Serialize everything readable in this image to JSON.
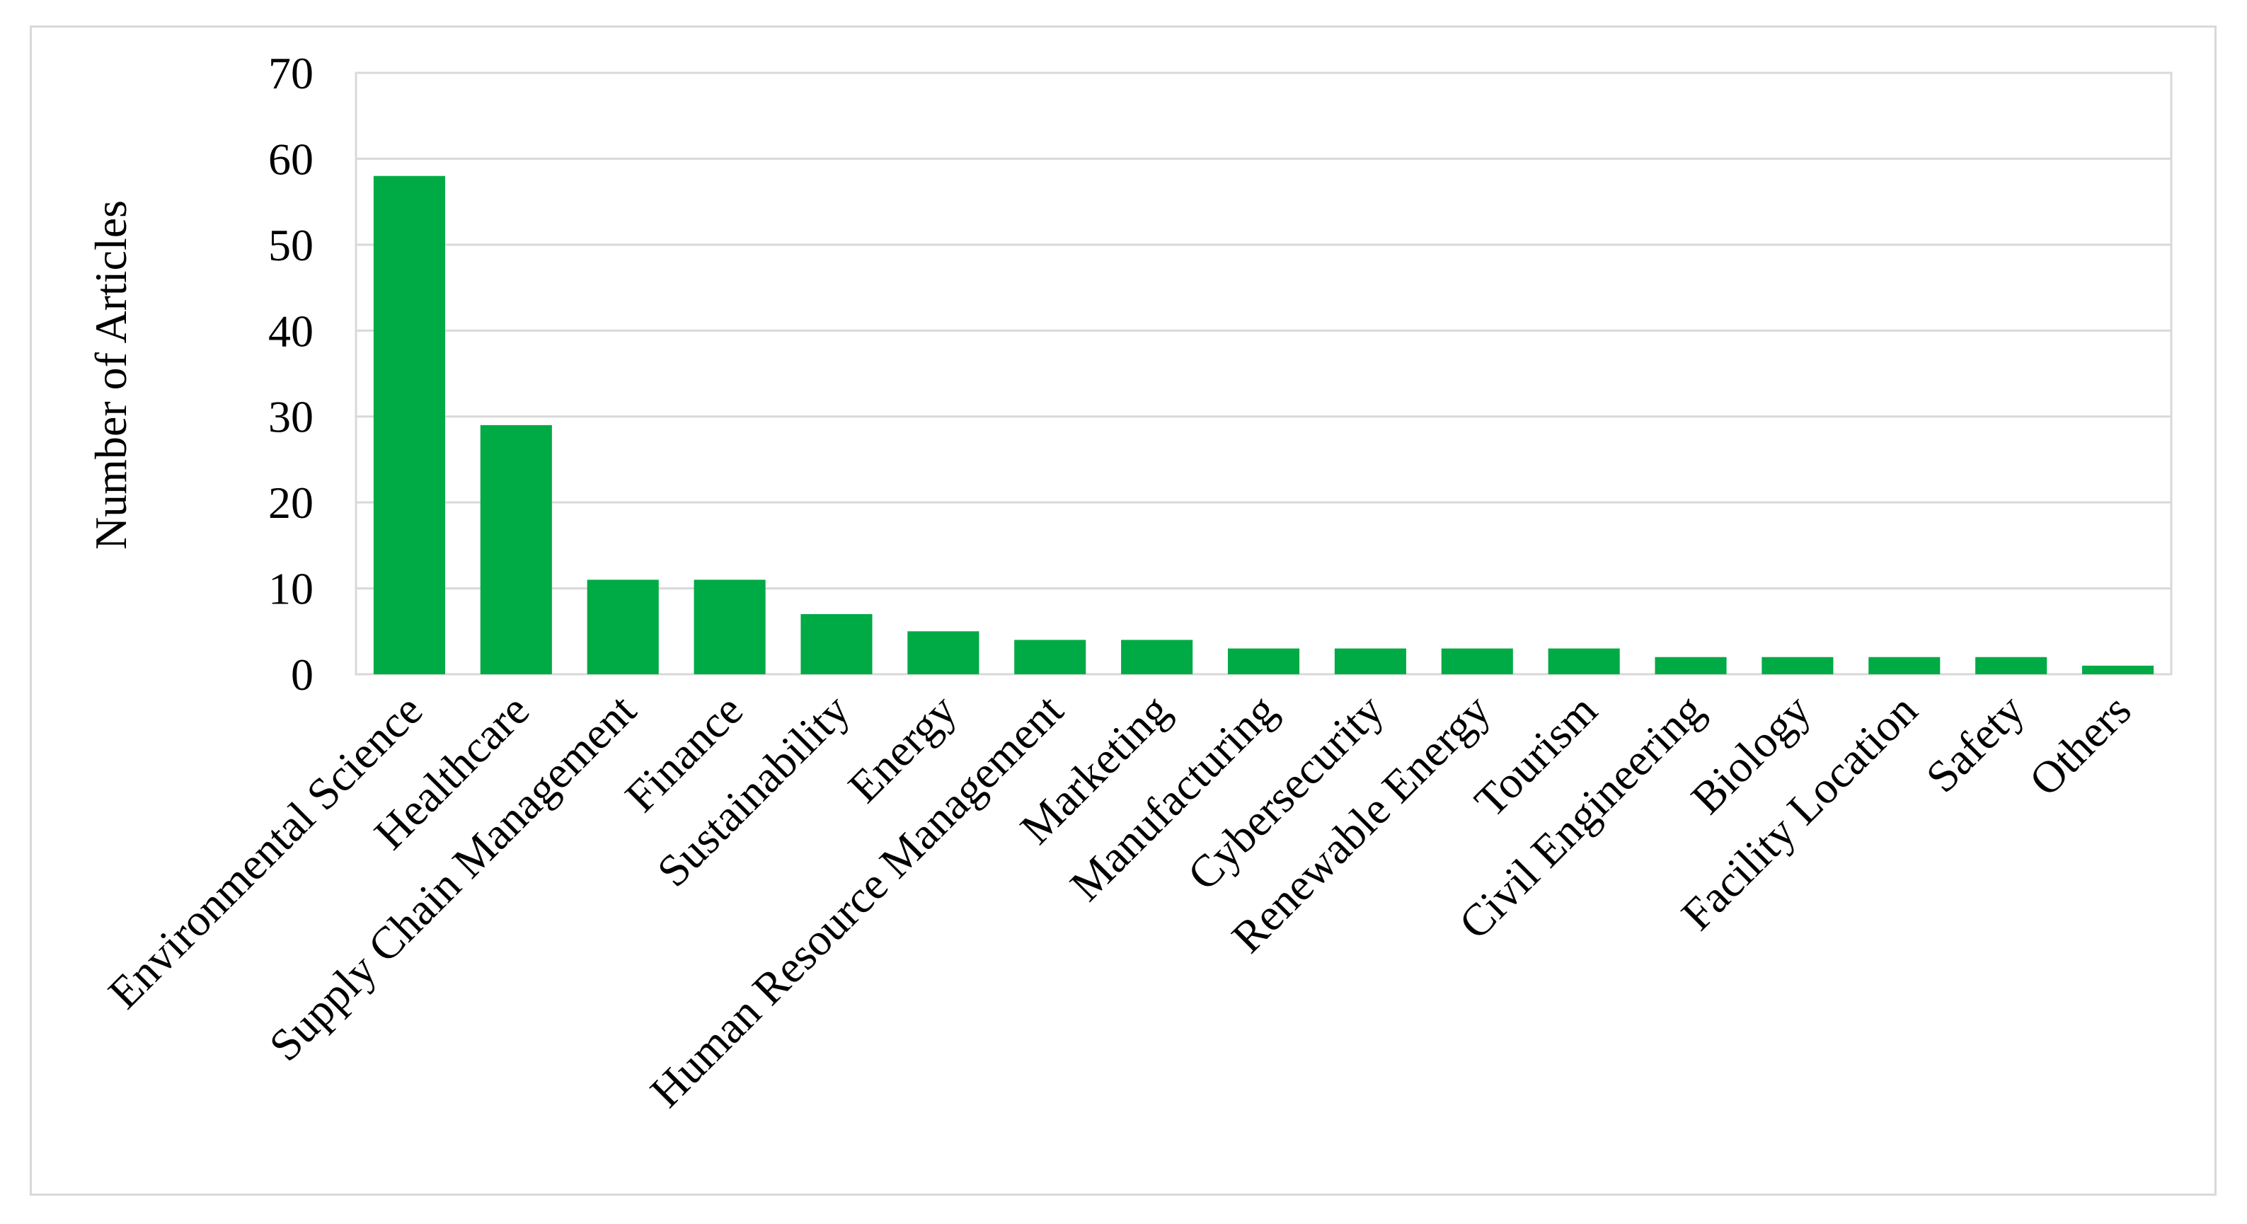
{
  "chart_data": {
    "type": "bar",
    "title": "",
    "xlabel": "",
    "ylabel": "Number of Articles",
    "ylim": [
      0,
      70
    ],
    "yticks": [
      0,
      10,
      20,
      30,
      40,
      50,
      60,
      70
    ],
    "grid": true,
    "legend": "none",
    "bar_color": "#00aa44",
    "grid_color": "#d9d9d9",
    "categories": [
      "Environmental Science",
      "Healthcare",
      "Supply Chain Management",
      "Finance",
      "Sustainability",
      "Energy",
      "Human Resource Management",
      "Marketing",
      "Manufacturing",
      "Cybersecurity",
      "Renewable Energy",
      "Tourism",
      "Civil Engineering",
      "Biology",
      "Facility Location",
      "Safety",
      "Others"
    ],
    "values": [
      58,
      29,
      11,
      11,
      7,
      5,
      4,
      4,
      3,
      3,
      3,
      3,
      2,
      2,
      2,
      2,
      1
    ]
  }
}
